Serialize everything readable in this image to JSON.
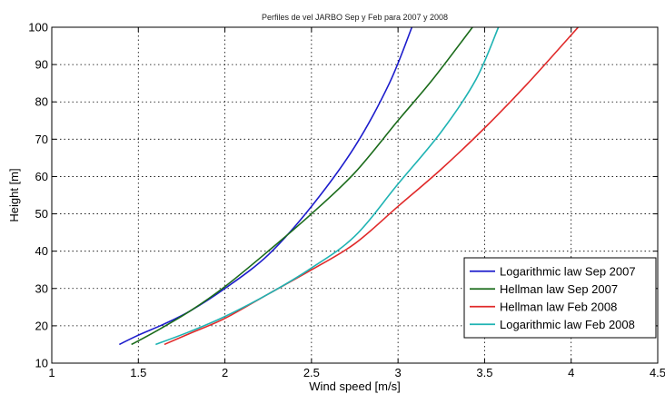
{
  "chart_data": {
    "type": "line",
    "title": "Perfiles de vel JARBO Sep y Feb para 2007 y 2008",
    "xlabel": "Wind speed [m/s]",
    "ylabel": "Height [m]",
    "xlim": [
      1,
      4.5
    ],
    "ylim": [
      10,
      100
    ],
    "xticks": [
      "1",
      "1.5",
      "2",
      "2.5",
      "3",
      "3.5",
      "4",
      "4.5"
    ],
    "yticks": [
      "10",
      "20",
      "30",
      "40",
      "50",
      "60",
      "70",
      "80",
      "90",
      "100"
    ],
    "grid": true,
    "grid_style": "dotted",
    "legend_position": "lower-right",
    "series": [
      {
        "name": "Logarithmic  law Sep 2007",
        "color": "#1c1ccc",
        "points": [
          [
            1.39,
            15
          ],
          [
            1.5,
            17.5
          ],
          [
            1.65,
            20.5
          ],
          [
            1.8,
            24
          ],
          [
            2.0,
            30
          ],
          [
            2.25,
            39
          ],
          [
            2.5,
            52
          ],
          [
            2.75,
            68
          ],
          [
            2.95,
            85
          ],
          [
            3.08,
            100
          ]
        ]
      },
      {
        "name": "Hellman law Sep 2007",
        "color": "#1a6b1a",
        "points": [
          [
            1.46,
            15
          ],
          [
            1.6,
            18.5
          ],
          [
            1.8,
            24
          ],
          [
            2.0,
            30.5
          ],
          [
            2.25,
            40
          ],
          [
            2.5,
            50
          ],
          [
            2.75,
            61
          ],
          [
            3.0,
            75
          ],
          [
            3.2,
            86
          ],
          [
            3.43,
            100
          ]
        ]
      },
      {
        "name": "Hellman law Feb 2008",
        "color": "#e02a2a",
        "points": [
          [
            1.65,
            15
          ],
          [
            1.8,
            18
          ],
          [
            2.0,
            22
          ],
          [
            2.25,
            28.5
          ],
          [
            2.5,
            35
          ],
          [
            2.75,
            42
          ],
          [
            3.0,
            52
          ],
          [
            3.25,
            62
          ],
          [
            3.5,
            73
          ],
          [
            3.75,
            85
          ],
          [
            4.04,
            100
          ]
        ]
      },
      {
        "name": "Logarithmic law Feb 2008",
        "color": "#1fb3b3",
        "points": [
          [
            1.6,
            15
          ],
          [
            1.8,
            18.5
          ],
          [
            2.0,
            22.5
          ],
          [
            2.25,
            28.5
          ],
          [
            2.5,
            35.5
          ],
          [
            2.75,
            44
          ],
          [
            3.0,
            58
          ],
          [
            3.25,
            72
          ],
          [
            3.45,
            86
          ],
          [
            3.58,
            100
          ]
        ]
      }
    ]
  }
}
